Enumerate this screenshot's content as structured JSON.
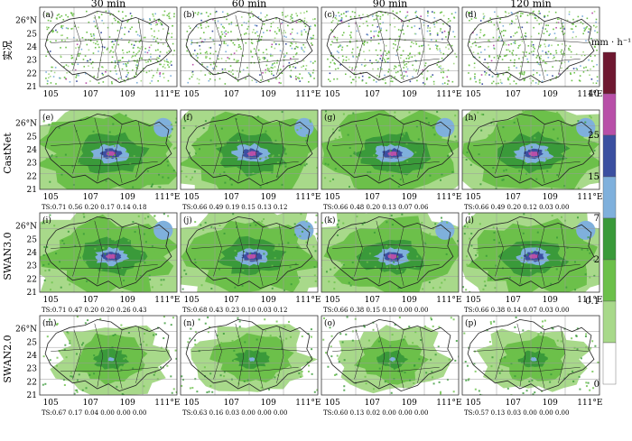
{
  "figure": {
    "column_titles": [
      "30 min",
      "60 min",
      "90 min",
      "120 min"
    ],
    "row_labels": [
      "实况",
      "CastNet",
      "SWAN3.0",
      "SWAN2.0"
    ],
    "panel_letters": [
      "(a)",
      "(b)",
      "(c)",
      "(d)",
      "(e)",
      "(f)",
      "(g)",
      "(h)",
      "(i)",
      "(j)",
      "(k)",
      "(l)",
      "(m)",
      "(n)",
      "(o)",
      "(p)"
    ],
    "y_ticks": [
      "21",
      "22",
      "23",
      "24",
      "25",
      "26°N"
    ],
    "x_ticks": [
      "105",
      "107",
      "109",
      "111°E"
    ],
    "ts_lines": {
      "CastNet": [
        "TS:0.71  0.56  0.20  0.17  0.14  0.18",
        "TS:0.66  0.49  0.19  0.15  0.13  0.12",
        "TS:0.66  0.48  0.20  0.13  0.07  0.06",
        "TS:0.66  0.49  0.20  0.12  0.03  0.00"
      ],
      "SWAN3.0": [
        "TS:0.71  0.47  0.20  0.20  0.26  0.43",
        "TS:0.68  0.43  0.23  0.10  0.03  0.12",
        "TS:0.66  0.38  0.15  0.10  0.00  0.00",
        "TS:0.66  0.38  0.14  0.07  0.03  0.00"
      ],
      "SWAN2.0": [
        "TS:0.67  0.17  0.04  0.00  0.00  0.00",
        "TS:0.63  0.16  0.03  0.00  0.00  0.00",
        "TS:0.60  0.13  0.02  0.00  0.00  0.00",
        "TS:0.57  0.13  0.03  0.00  0.00  0.00"
      ]
    },
    "colorbar": {
      "unit": "mm · h⁻¹",
      "levels": [
        "0",
        "0.1",
        "2",
        "7",
        "15",
        "25",
        "40"
      ],
      "colors": [
        "#ffffff",
        "#a8d98a",
        "#6cc04a",
        "#3a9a3a",
        "#7fb0dc",
        "#3b4fa0",
        "#b84fa8",
        "#6e1830"
      ]
    },
    "intensity": [
      [
        0.22,
        0.22,
        0.23,
        0.24
      ],
      [
        0.95,
        0.95,
        0.95,
        0.92
      ],
      [
        0.85,
        0.85,
        0.85,
        0.85
      ],
      [
        0.45,
        0.45,
        0.4,
        0.38
      ]
    ],
    "map_colors": {
      "border": "#222222",
      "grid": "#9a9a9a",
      "frame": "#333333"
    }
  }
}
